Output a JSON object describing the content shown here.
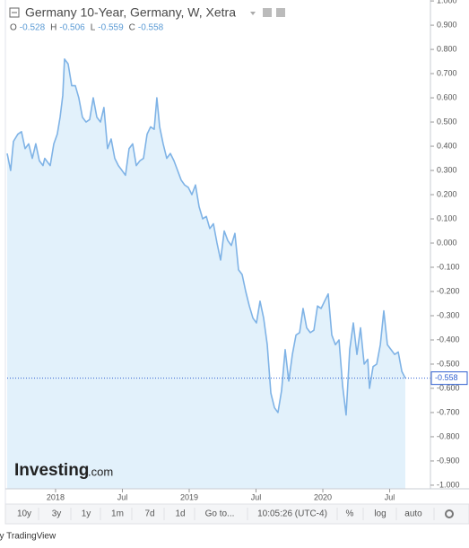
{
  "chart_data": {
    "type": "line",
    "title": "Germany 10-Year, Germany, W, Xetra",
    "ohlc": [
      {
        "label": "O",
        "value": -0.528
      },
      {
        "label": "H",
        "value": -0.506
      },
      {
        "label": "L",
        "value": -0.559
      },
      {
        "label": "C",
        "value": -0.558
      }
    ],
    "last_value": -0.558,
    "line_color": "#7fb3e6",
    "area_color": "#e2f1fb",
    "price_line_color": "#2f5fd0",
    "grid": false,
    "xlim": [
      2017.638,
      2020.805
    ],
    "xticks": [
      2018,
      {
        "value": 2018.5,
        "label": "Jul"
      },
      2019,
      {
        "value": 2019.5,
        "label": "Jul"
      },
      2020,
      {
        "value": 2020.5,
        "label": "Jul"
      }
    ],
    "ylim": [
      -1.015,
      1.004
    ],
    "yticks": [
      {
        "value": 1,
        "label": "1.000"
      },
      {
        "value": 0.9,
        "label": "0.900"
      },
      {
        "value": 0.8,
        "label": "0.800"
      },
      {
        "value": 0.7,
        "label": "0.700"
      },
      {
        "value": 0.6,
        "label": "0.600"
      },
      {
        "value": 0.5,
        "label": "0.500"
      },
      {
        "value": 0.4,
        "label": "0.400"
      },
      {
        "value": 0.3,
        "label": "0.300"
      },
      {
        "value": 0.2,
        "label": "0.200"
      },
      {
        "value": 0.1,
        "label": "0.100"
      },
      {
        "value": 0,
        "label": "0.000"
      },
      {
        "value": -0.1,
        "label": "-0.100"
      },
      {
        "value": -0.2,
        "label": "-0.200"
      },
      {
        "value": -0.3,
        "label": "-0.300"
      },
      {
        "value": -0.4,
        "label": "-0.400"
      },
      {
        "value": -0.5,
        "label": "-0.500"
      },
      {
        "value": -0.6,
        "label": "-0.600"
      },
      {
        "value": -0.7,
        "label": "-0.700"
      },
      {
        "value": -0.8,
        "label": "-0.800"
      },
      {
        "value": -0.9,
        "label": "-0.900"
      },
      {
        "value": -1,
        "label": "-1.000"
      }
    ],
    "x": [
      2017.638,
      2017.664,
      2017.685,
      2017.718,
      2017.745,
      2017.772,
      2017.799,
      2017.826,
      2017.852,
      2017.879,
      2017.906,
      2017.919,
      2017.946,
      2017.96,
      2017.987,
      2018.013,
      2018.034,
      2018.054,
      2018.067,
      2018.094,
      2018.121,
      2018.148,
      2018.174,
      2018.201,
      2018.228,
      2018.255,
      2018.282,
      2018.309,
      2018.336,
      2018.362,
      2018.389,
      2018.416,
      2018.443,
      2018.47,
      2018.497,
      2018.523,
      2018.55,
      2018.577,
      2018.604,
      2018.631,
      2018.658,
      2018.685,
      2018.711,
      2018.738,
      2018.758,
      2018.779,
      2018.805,
      2018.832,
      2018.859,
      2018.886,
      2018.913,
      2018.94,
      2018.966,
      2018.993,
      2019.02,
      2019.047,
      2019.074,
      2019.101,
      2019.128,
      2019.154,
      2019.181,
      2019.208,
      2019.235,
      2019.262,
      2019.289,
      2019.315,
      2019.342,
      2019.369,
      2019.396,
      2019.423,
      2019.45,
      2019.477,
      2019.503,
      2019.53,
      2019.557,
      2019.584,
      2019.611,
      2019.638,
      2019.664,
      2019.691,
      2019.718,
      2019.745,
      2019.772,
      2019.799,
      2019.826,
      2019.852,
      2019.879,
      2019.906,
      2019.933,
      2019.96,
      2019.987,
      2020.013,
      2020.04,
      2020.067,
      2020.094,
      2020.121,
      2020.148,
      2020.174,
      2020.201,
      2020.228,
      2020.255,
      2020.282,
      2020.309,
      2020.336,
      2020.349,
      2020.376,
      2020.403,
      2020.43,
      2020.456,
      2020.483,
      2020.51,
      2020.537,
      2020.564,
      2020.591,
      2020.617
    ],
    "values": [
      0.37,
      0.3,
      0.42,
      0.45,
      0.46,
      0.39,
      0.41,
      0.35,
      0.41,
      0.34,
      0.32,
      0.35,
      0.33,
      0.32,
      0.41,
      0.45,
      0.52,
      0.61,
      0.76,
      0.74,
      0.65,
      0.65,
      0.6,
      0.52,
      0.5,
      0.51,
      0.6,
      0.52,
      0.5,
      0.56,
      0.39,
      0.43,
      0.35,
      0.32,
      0.3,
      0.28,
      0.39,
      0.41,
      0.32,
      0.34,
      0.35,
      0.45,
      0.48,
      0.47,
      0.6,
      0.48,
      0.41,
      0.35,
      0.37,
      0.34,
      0.3,
      0.26,
      0.24,
      0.23,
      0.2,
      0.24,
      0.15,
      0.1,
      0.11,
      0.06,
      0.08,
      0,
      -0.07,
      0.05,
      0.01,
      -0.01,
      0.04,
      -0.11,
      -0.13,
      -0.2,
      -0.26,
      -0.31,
      -0.33,
      -0.24,
      -0.31,
      -0.42,
      -0.62,
      -0.68,
      -0.7,
      -0.61,
      -0.44,
      -0.57,
      -0.46,
      -0.38,
      -0.37,
      -0.27,
      -0.35,
      -0.37,
      -0.36,
      -0.26,
      -0.27,
      -0.24,
      -0.21,
      -0.38,
      -0.42,
      -0.4,
      -0.59,
      -0.71,
      -0.44,
      -0.33,
      -0.46,
      -0.35,
      -0.5,
      -0.48,
      -0.6,
      -0.51,
      -0.5,
      -0.42,
      -0.28,
      -0.42,
      -0.44,
      -0.46,
      -0.45,
      -0.53,
      -0.558
    ]
  },
  "logo": {
    "brand": "Investing",
    "suffix": ".com"
  },
  "toolbar": {
    "ranges": [
      "10y",
      "3y",
      "1y",
      "1m",
      "7d",
      "1d"
    ],
    "goto": "Go to...",
    "time": "10:05:26 (UTC-4)",
    "percent": "%",
    "log": "log",
    "auto": "auto"
  },
  "footer": "by TradingView"
}
